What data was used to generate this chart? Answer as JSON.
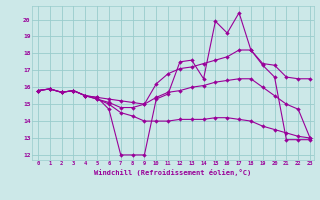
{
  "xlabel": "Windchill (Refroidissement éolien,°C)",
  "xlim": [
    -0.5,
    23.3
  ],
  "ylim": [
    11.7,
    20.8
  ],
  "yticks": [
    12,
    13,
    14,
    15,
    16,
    17,
    18,
    19,
    20
  ],
  "xticks": [
    0,
    1,
    2,
    3,
    4,
    5,
    6,
    7,
    8,
    9,
    10,
    11,
    12,
    13,
    14,
    15,
    16,
    17,
    18,
    19,
    20,
    21,
    22,
    23
  ],
  "bg_color": "#cce8e8",
  "line_color": "#990099",
  "grid_color": "#99cccc",
  "series": [
    {
      "x": [
        0,
        1,
        2,
        3,
        4,
        5,
        6,
        7,
        8,
        9,
        10,
        11,
        12,
        13,
        14,
        15,
        16,
        17,
        18,
        19,
        20,
        21,
        22,
        23
      ],
      "y": [
        15.8,
        15.9,
        15.7,
        15.8,
        15.5,
        15.4,
        14.7,
        12.0,
        12.0,
        12.0,
        15.3,
        15.6,
        17.5,
        17.6,
        16.5,
        19.9,
        19.2,
        20.4,
        18.2,
        17.3,
        16.6,
        12.9,
        12.9,
        12.9
      ]
    },
    {
      "x": [
        0,
        1,
        2,
        3,
        4,
        5,
        6,
        7,
        8,
        9,
        10,
        11,
        12,
        13,
        14,
        15,
        16,
        17,
        18,
        19,
        20,
        21,
        22,
        23
      ],
      "y": [
        15.8,
        15.9,
        15.7,
        15.8,
        15.5,
        15.4,
        15.3,
        15.2,
        15.1,
        15.0,
        16.2,
        16.8,
        17.1,
        17.2,
        17.4,
        17.6,
        17.8,
        18.2,
        18.2,
        17.4,
        17.3,
        16.6,
        16.5,
        16.5
      ]
    },
    {
      "x": [
        0,
        1,
        2,
        3,
        4,
        5,
        6,
        7,
        8,
        9,
        10,
        11,
        12,
        13,
        14,
        15,
        16,
        17,
        18,
        19,
        20,
        21,
        22,
        23
      ],
      "y": [
        15.8,
        15.9,
        15.7,
        15.8,
        15.5,
        15.3,
        15.1,
        14.8,
        14.8,
        15.0,
        15.4,
        15.7,
        15.8,
        16.0,
        16.1,
        16.3,
        16.4,
        16.5,
        16.5,
        16.0,
        15.5,
        15.0,
        14.7,
        13.0
      ]
    },
    {
      "x": [
        0,
        1,
        2,
        3,
        4,
        5,
        6,
        7,
        8,
        9,
        10,
        11,
        12,
        13,
        14,
        15,
        16,
        17,
        18,
        19,
        20,
        21,
        22,
        23
      ],
      "y": [
        15.8,
        15.9,
        15.7,
        15.8,
        15.5,
        15.3,
        15.0,
        14.5,
        14.3,
        14.0,
        14.0,
        14.0,
        14.1,
        14.1,
        14.1,
        14.2,
        14.2,
        14.1,
        14.0,
        13.7,
        13.5,
        13.3,
        13.1,
        13.0
      ]
    }
  ]
}
